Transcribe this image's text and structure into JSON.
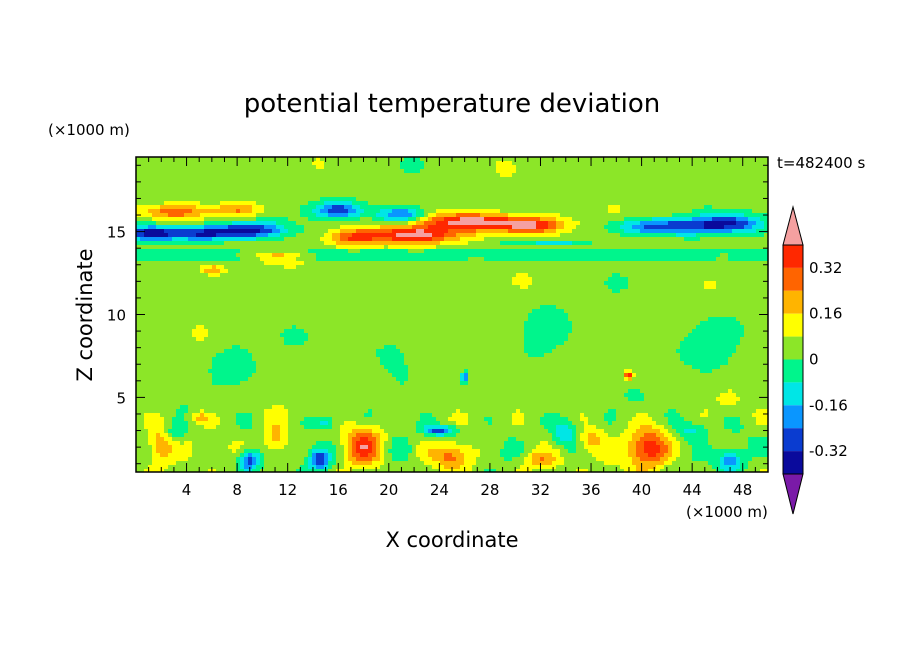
{
  "chart_data": {
    "type": "heatmap",
    "title": "potential temperature deviation",
    "xlabel": "X coordinate",
    "ylabel": "Z coordinate",
    "x_unit": "(×1000 m)",
    "y_unit": "(×1000 m)",
    "time_label": "t=482400 s",
    "xlim": [
      0,
      50
    ],
    "ylim": [
      0.5,
      19.5
    ],
    "x_ticks": [
      "4",
      "8",
      "12",
      "16",
      "20",
      "24",
      "28",
      "32",
      "36",
      "40",
      "44",
      "48"
    ],
    "y_ticks": [
      "5",
      "10",
      "15"
    ],
    "colorbar_labels": [
      "0.32",
      "0.16",
      "0",
      "-0.16",
      "-0.32"
    ],
    "levels": [
      -0.4,
      -0.32,
      -0.24,
      -0.16,
      -0.08,
      0,
      0.08,
      0.16,
      0.24,
      0.32,
      0.4
    ],
    "colors": [
      "#7a1aa8",
      "#3a0d8c",
      "#0a0a9c",
      "#0a3cd0",
      "#0a96ff",
      "#00e6e6",
      "#00f58c",
      "#8ce628",
      "#ffff00",
      "#ffb400",
      "#ff6400",
      "#ff2800",
      "#f5a0a0"
    ],
    "features": [
      {
        "kind": "cold",
        "x": 5,
        "z": 14.9,
        "sx": 3.5,
        "sz": 0.45,
        "a": -0.38
      },
      {
        "kind": "cold",
        "x": 1,
        "z": 14.9,
        "sx": 2,
        "sz": 0.45,
        "a": -0.3
      },
      {
        "kind": "cold",
        "x": 9,
        "z": 15.1,
        "sx": 2.5,
        "sz": 0.45,
        "a": -0.34
      },
      {
        "kind": "cold",
        "x": 16,
        "z": 16.3,
        "sx": 2,
        "sz": 0.5,
        "a": -0.32
      },
      {
        "kind": "cold",
        "x": 21,
        "z": 16,
        "sx": 2,
        "sz": 0.5,
        "a": -0.3
      },
      {
        "kind": "cold",
        "x": 42,
        "z": 15.3,
        "sx": 4,
        "sz": 0.5,
        "a": -0.36
      },
      {
        "kind": "cold",
        "x": 47,
        "z": 15.5,
        "sx": 2.5,
        "sz": 0.5,
        "a": -0.3
      },
      {
        "kind": "cold",
        "x": 33,
        "z": 14.3,
        "sx": 3,
        "sz": 0.2,
        "a": -0.16
      },
      {
        "kind": "warm",
        "x": 22,
        "z": 14.8,
        "sx": 4,
        "sz": 0.5,
        "a": 0.38
      },
      {
        "kind": "warm",
        "x": 26,
        "z": 15.6,
        "sx": 3.5,
        "sz": 0.5,
        "a": 0.4
      },
      {
        "kind": "warm",
        "x": 31,
        "z": 15.4,
        "sx": 3,
        "sz": 0.5,
        "a": 0.38
      },
      {
        "kind": "warm",
        "x": 17,
        "z": 14.6,
        "sx": 2,
        "sz": 0.5,
        "a": 0.22
      },
      {
        "kind": "warm",
        "x": 3,
        "z": 16.2,
        "sx": 2.5,
        "sz": 0.4,
        "a": 0.22
      },
      {
        "kind": "warm",
        "x": 8,
        "z": 16.3,
        "sx": 2,
        "sz": 0.4,
        "a": 0.2
      },
      {
        "kind": "warm",
        "x": 6,
        "z": 12.7,
        "sx": 1,
        "sz": 0.3,
        "a": 0.2
      },
      {
        "kind": "warm",
        "x": 11,
        "z": 13.5,
        "sx": 2,
        "sz": 0.35,
        "a": 0.18
      },
      {
        "kind": "warm",
        "x": 18,
        "z": 2,
        "sx": 1.5,
        "sz": 1.2,
        "a": 0.3
      },
      {
        "kind": "warm",
        "x": 40.5,
        "z": 1.9,
        "sx": 1.6,
        "sz": 1.1,
        "a": 0.34
      },
      {
        "kind": "warm",
        "x": 25,
        "z": 1.5,
        "sx": 1.5,
        "sz": 0.8,
        "a": 0.24
      },
      {
        "kind": "warm",
        "x": 2,
        "z": 2.2,
        "sx": 1,
        "sz": 1,
        "a": 0.2
      },
      {
        "kind": "warm",
        "x": 11,
        "z": 2.5,
        "sx": 1,
        "sz": 1,
        "a": 0.18
      },
      {
        "kind": "warm",
        "x": 32,
        "z": 1.2,
        "sx": 1.5,
        "sz": 0.6,
        "a": 0.2
      },
      {
        "kind": "warm",
        "x": 36,
        "z": 2.5,
        "sx": 1,
        "sz": 0.6,
        "a": 0.16
      },
      {
        "kind": "warm",
        "x": 5,
        "z": 3.8,
        "sx": 0.8,
        "sz": 0.4,
        "a": 0.16
      },
      {
        "kind": "warm",
        "x": 39,
        "z": 6.3,
        "sx": 0.3,
        "sz": 0.25,
        "a": 0.4
      },
      {
        "kind": "cold",
        "x": 9,
        "z": 1.2,
        "sx": 0.8,
        "sz": 0.6,
        "a": -0.32
      },
      {
        "kind": "cold",
        "x": 14.5,
        "z": 1.2,
        "sx": 0.8,
        "sz": 0.6,
        "a": -0.34
      },
      {
        "kind": "cold",
        "x": 24,
        "z": 3,
        "sx": 1.3,
        "sz": 0.3,
        "a": -0.3
      },
      {
        "kind": "cold",
        "x": 26,
        "z": 6.2,
        "sx": 0.3,
        "sz": 0.3,
        "a": -0.34
      },
      {
        "kind": "cold",
        "x": 3,
        "z": 2.8,
        "sx": 1,
        "sz": 0.6,
        "a": -0.16
      },
      {
        "kind": "cold",
        "x": 21,
        "z": 1.8,
        "sx": 1.2,
        "sz": 1,
        "a": -0.12
      },
      {
        "kind": "cold",
        "x": 34,
        "z": 2.8,
        "sx": 1,
        "sz": 0.8,
        "a": -0.16
      },
      {
        "kind": "cold",
        "x": 47,
        "z": 1.2,
        "sx": 1,
        "sz": 0.6,
        "a": -0.24
      },
      {
        "kind": "cold",
        "x": 44,
        "z": 3,
        "sx": 1.2,
        "sz": 0.5,
        "a": -0.14
      },
      {
        "kind": "cold",
        "x": 15,
        "z": 3.5,
        "sx": 1,
        "sz": 0.4,
        "a": -0.16
      },
      {
        "kind": "cold",
        "x": 20,
        "z": 8,
        "sx": 2,
        "sz": 1.2,
        "a": -0.08
      },
      {
        "kind": "cold",
        "x": 33,
        "z": 9,
        "sx": 2,
        "sz": 1.5,
        "a": -0.08
      },
      {
        "kind": "cold",
        "x": 8,
        "z": 7,
        "sx": 2,
        "sz": 1.5,
        "a": -0.08
      },
      {
        "kind": "cold",
        "x": 45,
        "z": 8,
        "sx": 2.5,
        "sz": 1.5,
        "a": -0.08
      }
    ]
  }
}
